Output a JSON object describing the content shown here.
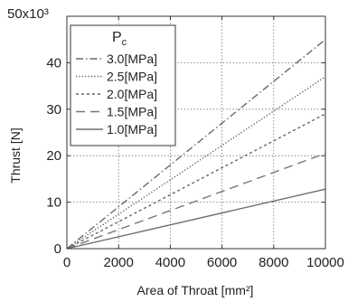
{
  "chart_data": {
    "type": "line",
    "title": "",
    "xlabel": "Area of Throat [mm²]",
    "ylabel": "Thrust [N]",
    "y_multiplier_label": "50x10³",
    "xlim": [
      0,
      10000
    ],
    "ylim": [
      0,
      50000
    ],
    "xticks": [
      0,
      2000,
      4000,
      6000,
      8000,
      10000
    ],
    "yticks": [
      0,
      10000,
      20000,
      30000,
      40000
    ],
    "ytick_labels": [
      "0",
      "10",
      "20",
      "30",
      "40"
    ],
    "grid": true,
    "legend_title": "Pₓ",
    "legend_title_main": "P",
    "legend_title_sub": "c",
    "legend_position": "top-left",
    "series": [
      {
        "name": "3.0[MPa]",
        "x": [
          0,
          10000
        ],
        "y": [
          0,
          45000
        ],
        "color": "#6a6a6a",
        "dash": "dashdot"
      },
      {
        "name": "2.5[MPa]",
        "x": [
          0,
          10000
        ],
        "y": [
          0,
          37000
        ],
        "color": "#555555",
        "dash": "dotted"
      },
      {
        "name": "2.0[MPa]",
        "x": [
          0,
          10000
        ],
        "y": [
          0,
          29000
        ],
        "color": "#666666",
        "dash": "shortdash"
      },
      {
        "name": "1.5[MPa]",
        "x": [
          0,
          10000
        ],
        "y": [
          0,
          20500
        ],
        "color": "#777777",
        "dash": "longdash"
      },
      {
        "name": "1.0[MPa]",
        "x": [
          0,
          10000
        ],
        "y": [
          0,
          12800
        ],
        "color": "#6e6e6e",
        "dash": "solid"
      }
    ]
  }
}
